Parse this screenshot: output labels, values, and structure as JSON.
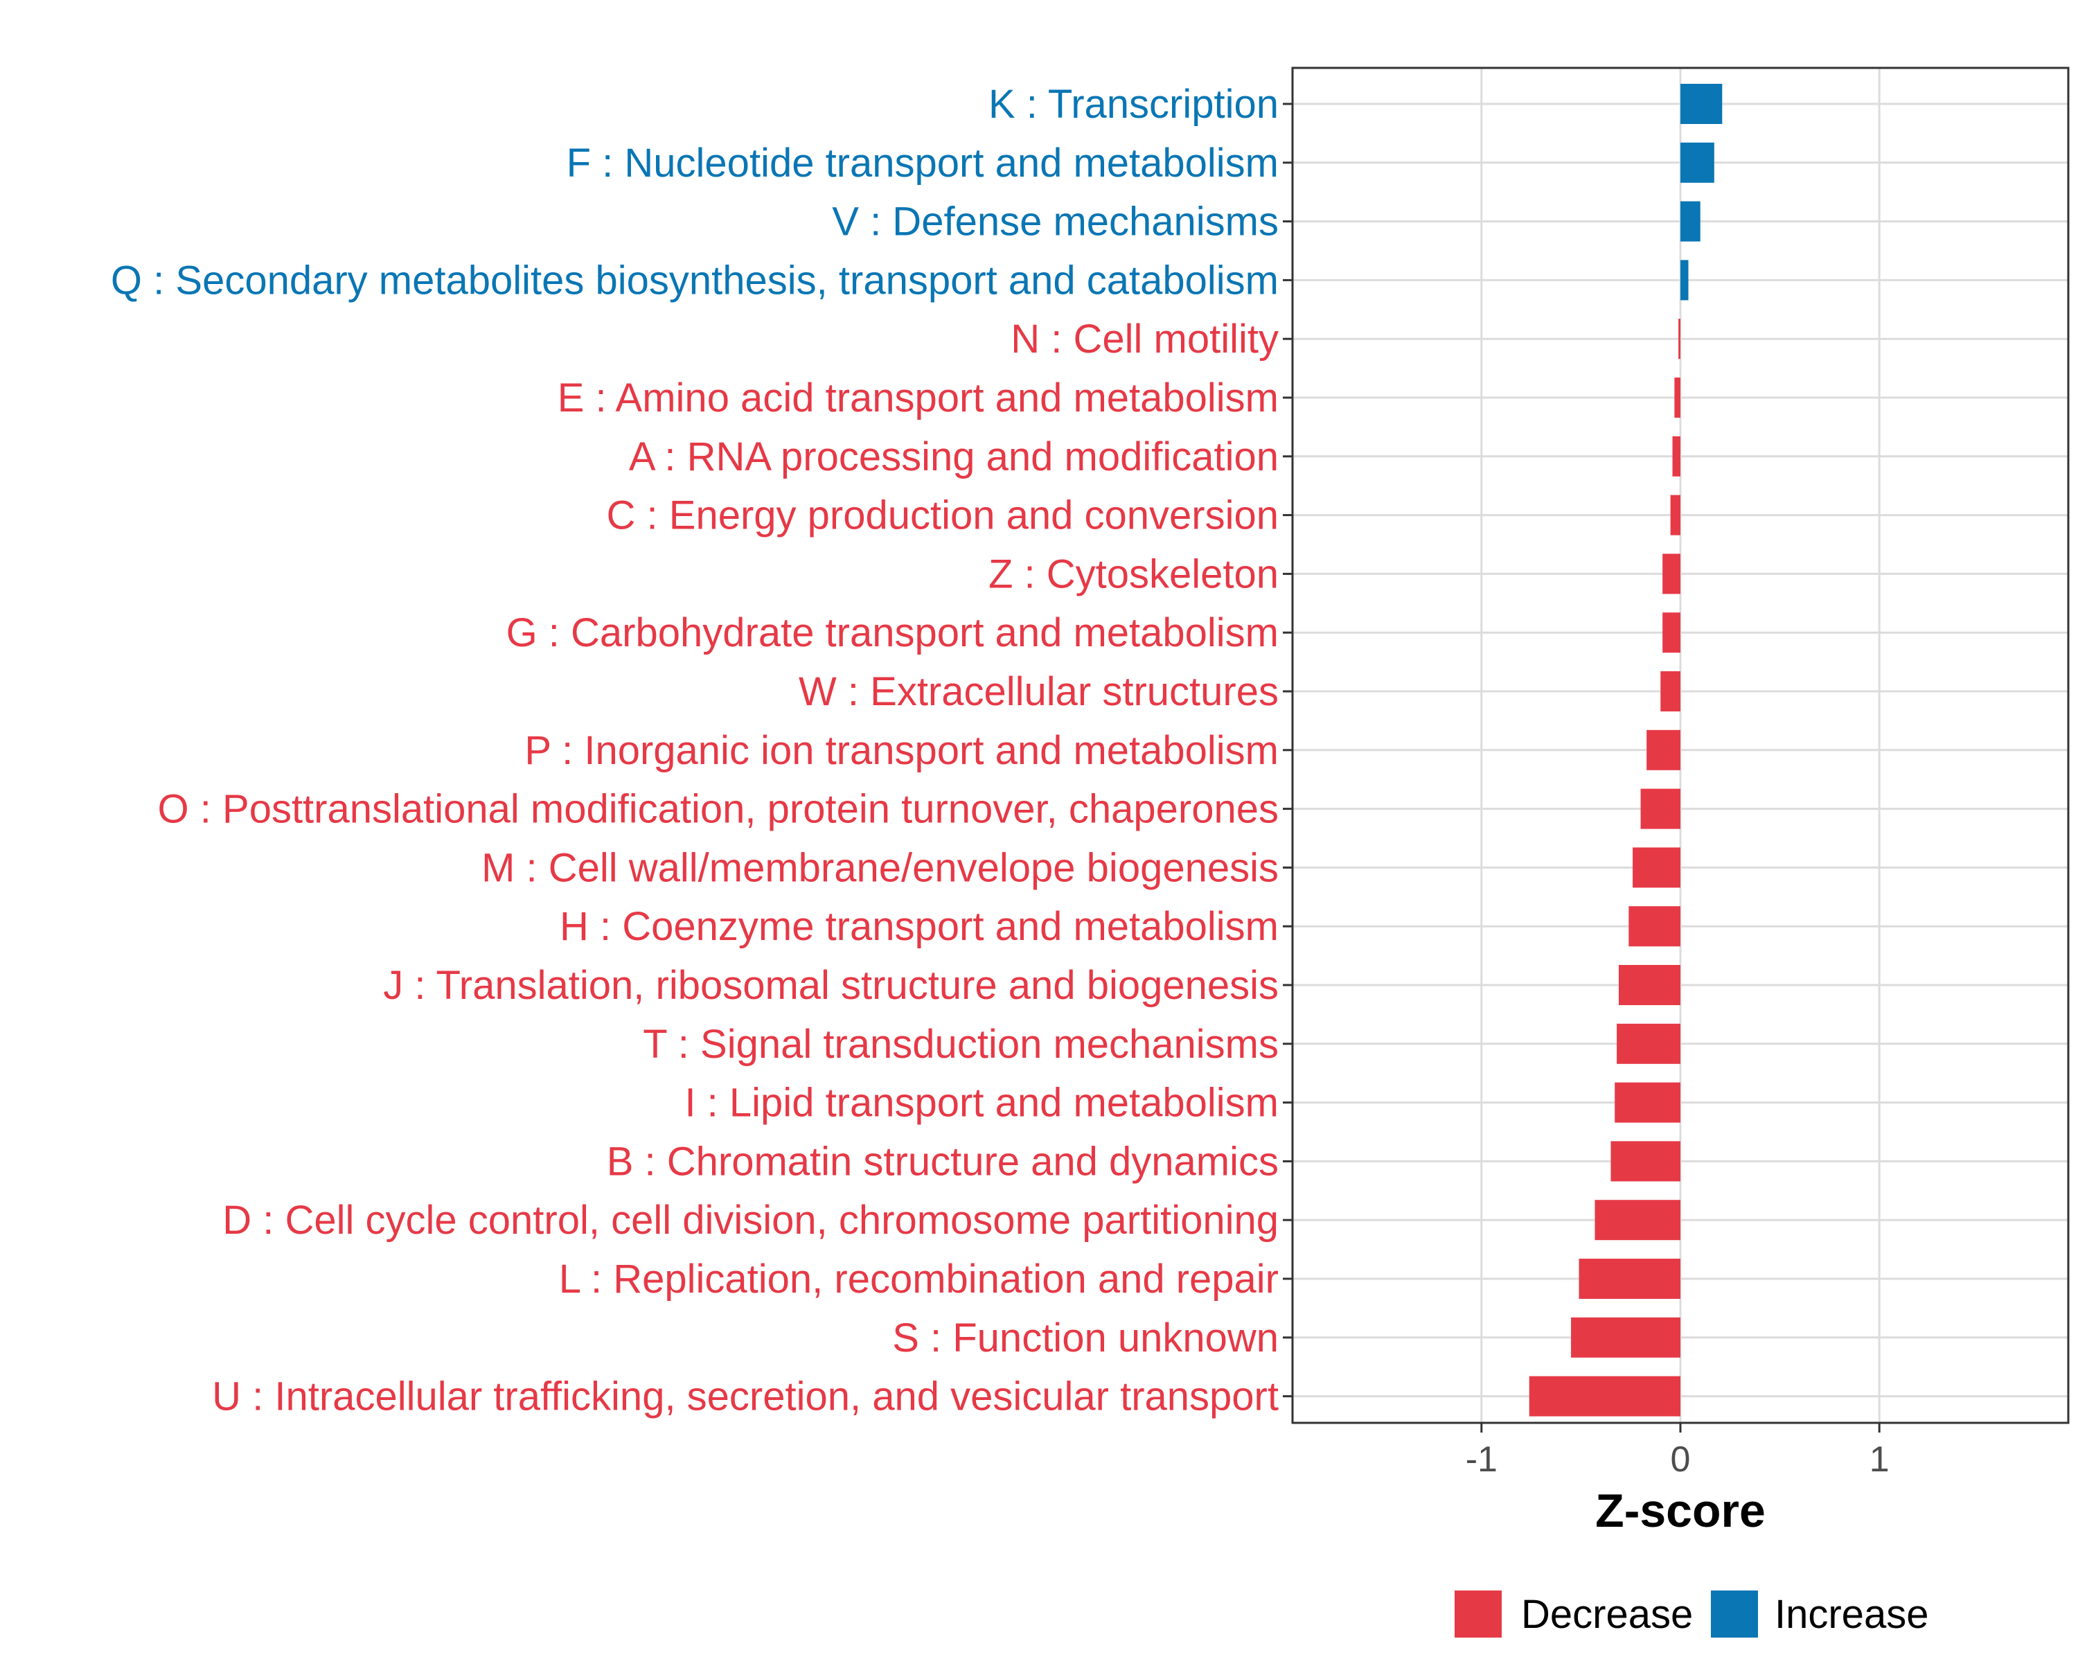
{
  "chart_data": {
    "type": "bar",
    "orientation": "horizontal",
    "xlabel": "Z-score",
    "xlim": [
      -1.95,
      1.95
    ],
    "xticks": [
      -1,
      0,
      1
    ],
    "xtick_labels": [
      "-1",
      "0",
      "1"
    ],
    "grid": true,
    "legend_position": "bottom",
    "colors": {
      "Decrease": "#e63946",
      "Increase": "#0a76b4"
    },
    "legend": [
      {
        "name": "Decrease",
        "color": "#e63946"
      },
      {
        "name": "Increase",
        "color": "#0a76b4"
      }
    ],
    "categories": [
      "K : Transcription",
      "F : Nucleotide transport and metabolism",
      "V : Defense mechanisms",
      "Q : Secondary metabolites biosynthesis, transport and catabolism",
      "N : Cell motility",
      "E : Amino acid transport and metabolism",
      "A : RNA processing and modification",
      "C : Energy production and conversion",
      "Z : Cytoskeleton",
      "G : Carbohydrate transport and metabolism",
      "W : Extracellular structures",
      "P : Inorganic ion transport and metabolism",
      "O : Posttranslational modification, protein turnover, chaperones",
      "M : Cell wall/membrane/envelope biogenesis",
      "H : Coenzyme transport and metabolism",
      "J : Translation, ribosomal structure and biogenesis",
      "T : Signal transduction mechanisms",
      "I : Lipid transport and metabolism",
      "B : Chromatin structure and dynamics",
      "D : Cell cycle control, cell division, chromosome partitioning",
      "L : Replication, recombination and repair",
      "S : Function unknown",
      "U : Intracellular trafficking, secretion, and vesicular transport"
    ],
    "values": [
      0.21,
      0.17,
      0.1,
      0.04,
      -0.01,
      -0.03,
      -0.04,
      -0.05,
      -0.09,
      -0.09,
      -0.1,
      -0.17,
      -0.2,
      -0.24,
      -0.26,
      -0.31,
      -0.32,
      -0.33,
      -0.35,
      -0.43,
      -0.51,
      -0.55,
      -0.76
    ],
    "direction": [
      "Increase",
      "Increase",
      "Increase",
      "Increase",
      "Decrease",
      "Decrease",
      "Decrease",
      "Decrease",
      "Decrease",
      "Decrease",
      "Decrease",
      "Decrease",
      "Decrease",
      "Decrease",
      "Decrease",
      "Decrease",
      "Decrease",
      "Decrease",
      "Decrease",
      "Decrease",
      "Decrease",
      "Decrease",
      "Decrease"
    ]
  }
}
